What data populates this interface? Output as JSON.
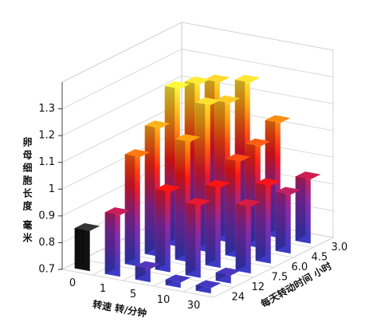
{
  "chart_data": {
    "type": "bar3d",
    "xlabel": "转速 转/分钟",
    "ylabel": "每天转动时间 小时",
    "zlabel": "卵母细胞长度 毫米",
    "categories": [
      "0",
      "1",
      "5",
      "10",
      "30"
    ],
    "series": [
      {
        "name": "3.0",
        "values": [
          null,
          1.24,
          1.26,
          1.13,
          0.94
        ]
      },
      {
        "name": "4.5",
        "values": [
          null,
          1.27,
          1.22,
          1.08,
          0.92
        ]
      },
      {
        "name": "6.0",
        "values": [
          null,
          1.29,
          1.25,
          1.06,
          0.99
        ]
      },
      {
        "name": "7.5",
        "values": [
          null,
          1.18,
          1.15,
          1.0,
          0.95
        ]
      },
      {
        "name": "12",
        "values": [
          null,
          1.11,
          1.0,
          0.97,
          0.73
        ]
      },
      {
        "name": "24",
        "values": [
          0.85,
          0.93,
          0.75,
          0.72,
          0.72
        ]
      }
    ],
    "zlim": [
      0.7,
      1.4
    ],
    "zticks": [
      0.7,
      0.8,
      0.9,
      1.0,
      1.1,
      1.2,
      1.3
    ],
    "grid": true,
    "colormap": [
      "#3a3ac4",
      "#8a2aa8",
      "#ff1414",
      "#ffa010",
      "#ffff40"
    ],
    "first_category_color": "#111111"
  }
}
